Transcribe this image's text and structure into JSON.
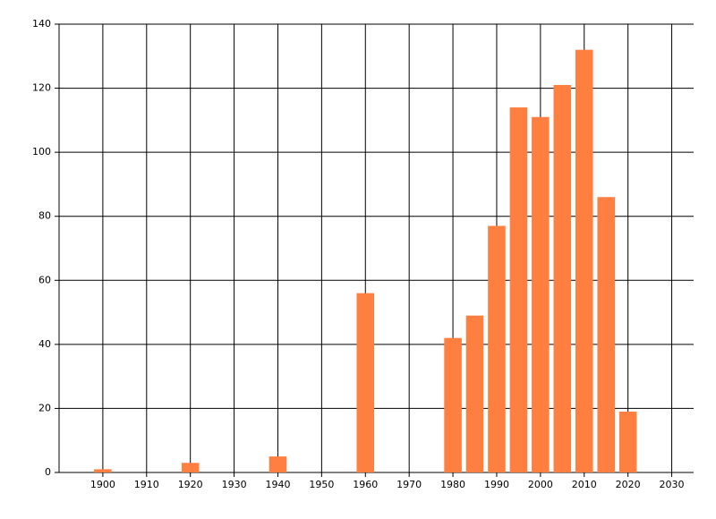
{
  "chart_data": {
    "type": "bar",
    "x": [
      1900,
      1920,
      1940,
      1960,
      1980,
      1985,
      1990,
      1995,
      2000,
      2005,
      2010,
      2015,
      2020
    ],
    "values": [
      1,
      3,
      5,
      56,
      42,
      49,
      77,
      114,
      111,
      121,
      132,
      86,
      19
    ],
    "color": "#ff7f40",
    "xlim": [
      1890,
      2035
    ],
    "xticks": [
      1900,
      1910,
      1920,
      1930,
      1940,
      1950,
      1960,
      1970,
      1980,
      1990,
      2000,
      2010,
      2020,
      2030
    ],
    "ylim": [
      0,
      140
    ],
    "yticks": [
      0,
      20,
      40,
      60,
      80,
      100,
      120,
      140
    ],
    "grid": true
  }
}
